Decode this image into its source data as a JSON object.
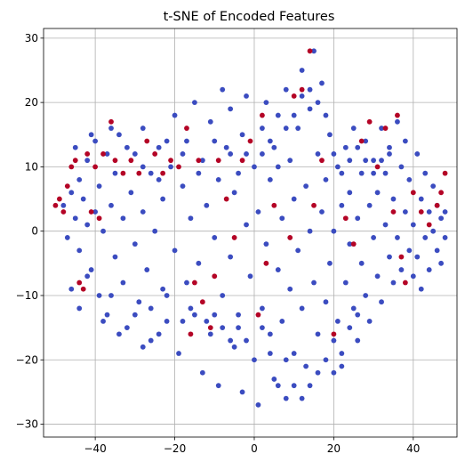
{
  "chart_data": {
    "type": "scatter",
    "title": "t-SNE of Encoded Features",
    "xlabel": "",
    "ylabel": "",
    "xlim": [
      -53,
      51
    ],
    "ylim": [
      -32,
      31.5
    ],
    "xticks": [
      -40,
      -20,
      0,
      20,
      40
    ],
    "yticks": [
      -30,
      -20,
      -10,
      0,
      10,
      20,
      30
    ],
    "grid": true,
    "legend": null,
    "colors": {
      "class_0": "#3b4cc0",
      "class_1": "#b40426",
      "grid": "#b0b0b0",
      "axes": "#000000"
    },
    "series": [
      {
        "class": 0,
        "color": "#3b4cc0",
        "points": [
          [
            -48,
            4
          ],
          [
            -47,
            -1
          ],
          [
            -46,
            6
          ],
          [
            -45,
            2
          ],
          [
            -44,
            8
          ],
          [
            -44,
            -3
          ],
          [
            -43,
            5
          ],
          [
            -42,
            1
          ],
          [
            -42,
            11
          ],
          [
            -41,
            -6
          ],
          [
            -40,
            3
          ],
          [
            -40,
            14
          ],
          [
            -39,
            -10
          ],
          [
            -39,
            7
          ],
          [
            -38,
            0
          ],
          [
            -37,
            12
          ],
          [
            -37,
            -13
          ],
          [
            -36,
            4
          ],
          [
            -35,
            -4
          ],
          [
            -35,
            9
          ],
          [
            -34,
            15
          ],
          [
            -33,
            -8
          ],
          [
            -33,
            2
          ],
          [
            -32,
            -15
          ],
          [
            -31,
            6
          ],
          [
            -30,
            12
          ],
          [
            -30,
            -2
          ],
          [
            -29,
            -11
          ],
          [
            -28,
            3
          ],
          [
            -28,
            16
          ],
          [
            -27,
            -6
          ],
          [
            -26,
            9
          ],
          [
            -26,
            -17
          ],
          [
            -25,
            0
          ],
          [
            -24,
            13
          ],
          [
            -23,
            -9
          ],
          [
            -23,
            5
          ],
          [
            -22,
            -14
          ],
          [
            -21,
            10
          ],
          [
            -20,
            -3
          ],
          [
            -20,
            18
          ],
          [
            -19,
            -19
          ],
          [
            -18,
            7
          ],
          [
            -17,
            -8
          ],
          [
            -17,
            14
          ],
          [
            -16,
            2
          ],
          [
            -15,
            -13
          ],
          [
            -15,
            20
          ],
          [
            -14,
            -5
          ],
          [
            -13,
            11
          ],
          [
            -13,
            -22
          ],
          [
            -12,
            4
          ],
          [
            -11,
            -16
          ],
          [
            -11,
            17
          ],
          [
            -10,
            -1
          ],
          [
            -9,
            8
          ],
          [
            -9,
            -24
          ],
          [
            -8,
            22
          ],
          [
            -8,
            -10
          ],
          [
            -7,
            13
          ],
          [
            -6,
            -4
          ],
          [
            -6,
            19
          ],
          [
            -5,
            -18
          ],
          [
            -5,
            6
          ],
          [
            -4,
            -13
          ],
          [
            -3,
            15
          ],
          [
            -3,
            -25
          ],
          [
            -2,
            1
          ],
          [
            -2,
            21
          ],
          [
            -1,
            -7
          ],
          [
            0,
            10
          ],
          [
            0,
            -20
          ],
          [
            1,
            -27
          ],
          [
            1,
            3
          ],
          [
            2,
            16
          ],
          [
            2,
            -12
          ],
          [
            3,
            -2
          ],
          [
            3,
            20
          ],
          [
            4,
            -16
          ],
          [
            4,
            8
          ],
          [
            5,
            -23
          ],
          [
            5,
            13
          ],
          [
            6,
            -6
          ],
          [
            6,
            18
          ],
          [
            7,
            -14
          ],
          [
            7,
            2
          ],
          [
            8,
            -26
          ],
          [
            8,
            22
          ],
          [
            9,
            -9
          ],
          [
            9,
            11
          ],
          [
            10,
            -19
          ],
          [
            10,
            5
          ],
          [
            11,
            16
          ],
          [
            11,
            -3
          ],
          [
            12,
            -12
          ],
          [
            12,
            25
          ],
          [
            13,
            7
          ],
          [
            13,
            -21
          ],
          [
            14,
            0
          ],
          [
            14,
            19
          ],
          [
            15,
            -8
          ],
          [
            15,
            28
          ],
          [
            16,
            12
          ],
          [
            16,
            -16
          ],
          [
            17,
            3
          ],
          [
            17,
            23
          ],
          [
            18,
            -11
          ],
          [
            18,
            8
          ],
          [
            19,
            -5
          ],
          [
            19,
            15
          ],
          [
            20,
            -22
          ],
          [
            20,
            0
          ],
          [
            21,
            10
          ],
          [
            21,
            -14
          ],
          [
            22,
            4
          ],
          [
            22,
            -19
          ],
          [
            23,
            13
          ],
          [
            23,
            -8
          ],
          [
            24,
            6
          ],
          [
            24,
            -2
          ],
          [
            25,
            16
          ],
          [
            25,
            -12
          ],
          [
            26,
            2
          ],
          [
            26,
            -17
          ],
          [
            27,
            9
          ],
          [
            27,
            -5
          ],
          [
            28,
            14
          ],
          [
            28,
            -10
          ],
          [
            29,
            4
          ],
          [
            29,
            -14
          ],
          [
            30,
            11
          ],
          [
            30,
            -1
          ],
          [
            31,
            -7
          ],
          [
            31,
            6
          ],
          [
            32,
            16
          ],
          [
            32,
            -11
          ],
          [
            33,
            1
          ],
          [
            33,
            9
          ],
          [
            34,
            -4
          ],
          [
            34,
            13
          ],
          [
            35,
            -8
          ],
          [
            35,
            5
          ],
          [
            36,
            17
          ],
          [
            36,
            -1
          ],
          [
            37,
            10
          ],
          [
            37,
            -6
          ],
          [
            38,
            3
          ],
          [
            38,
            14
          ],
          [
            39,
            -3
          ],
          [
            39,
            8
          ],
          [
            40,
            -7
          ],
          [
            40,
            1
          ],
          [
            41,
            12
          ],
          [
            41,
            -4
          ],
          [
            42,
            5
          ],
          [
            42,
            -9
          ],
          [
            43,
            9
          ],
          [
            43,
            -1
          ],
          [
            44,
            3
          ],
          [
            44,
            -6
          ],
          [
            45,
            7
          ],
          [
            45,
            0
          ],
          [
            46,
            -3
          ],
          [
            46,
            4
          ],
          [
            47,
            -5
          ],
          [
            47,
            2
          ],
          [
            48,
            -1
          ],
          [
            48,
            3
          ],
          [
            -46,
            -9
          ],
          [
            -44,
            -12
          ],
          [
            -42,
            -7
          ],
          [
            -38,
            -14
          ],
          [
            -36,
            -10
          ],
          [
            -34,
            -16
          ],
          [
            -30,
            -13
          ],
          [
            -28,
            -18
          ],
          [
            -26,
            -12
          ],
          [
            -24,
            -16
          ],
          [
            -22,
            -10
          ],
          [
            -18,
            -14
          ],
          [
            -16,
            -12
          ],
          [
            -12,
            -14
          ],
          [
            -10,
            -13
          ],
          [
            -8,
            -15
          ],
          [
            -6,
            -17
          ],
          [
            -4,
            -15
          ],
          [
            -2,
            -17
          ],
          [
            2,
            -15
          ],
          [
            4,
            -19
          ],
          [
            6,
            -24
          ],
          [
            8,
            -20
          ],
          [
            10,
            -24
          ],
          [
            12,
            -26
          ],
          [
            14,
            -24
          ],
          [
            16,
            -22
          ],
          [
            18,
            -20
          ],
          [
            20,
            -17
          ],
          [
            22,
            -21
          ],
          [
            24,
            -15
          ],
          [
            26,
            -13
          ],
          [
            -45,
            13
          ],
          [
            -41,
            15
          ],
          [
            -36,
            16
          ],
          [
            -32,
            13
          ],
          [
            -28,
            10
          ],
          [
            -24,
            8
          ],
          [
            -22,
            14
          ],
          [
            -18,
            12
          ],
          [
            -14,
            9
          ],
          [
            -10,
            14
          ],
          [
            -6,
            12
          ],
          [
            -4,
            9
          ],
          [
            -2,
            12
          ],
          [
            2,
            12
          ],
          [
            4,
            14
          ],
          [
            6,
            10
          ],
          [
            8,
            16
          ],
          [
            10,
            18
          ],
          [
            12,
            21
          ],
          [
            14,
            22
          ],
          [
            16,
            20
          ],
          [
            18,
            18
          ],
          [
            20,
            12
          ],
          [
            22,
            9
          ],
          [
            24,
            11
          ],
          [
            26,
            13
          ],
          [
            28,
            11
          ],
          [
            30,
            9
          ],
          [
            32,
            11
          ],
          [
            34,
            12
          ]
        ]
      },
      {
        "class": 1,
        "color": "#b40426",
        "points": [
          [
            -50,
            4
          ],
          [
            -49,
            5
          ],
          [
            -48,
            3
          ],
          [
            -47,
            7
          ],
          [
            -46,
            10
          ],
          [
            -45,
            11
          ],
          [
            -44,
            -8
          ],
          [
            -43,
            -9
          ],
          [
            -42,
            12
          ],
          [
            -41,
            3
          ],
          [
            -40,
            10
          ],
          [
            -39,
            2
          ],
          [
            -38,
            12
          ],
          [
            -36,
            17
          ],
          [
            -35,
            11
          ],
          [
            -33,
            9
          ],
          [
            -31,
            11
          ],
          [
            -29,
            9
          ],
          [
            -27,
            14
          ],
          [
            -25,
            12
          ],
          [
            -23,
            9
          ],
          [
            -21,
            11
          ],
          [
            -19,
            10
          ],
          [
            -17,
            16
          ],
          [
            -16,
            -16
          ],
          [
            -15,
            -8
          ],
          [
            -14,
            11
          ],
          [
            -13,
            -11
          ],
          [
            -11,
            -15
          ],
          [
            -10,
            -7
          ],
          [
            -9,
            11
          ],
          [
            -7,
            5
          ],
          [
            -5,
            -1
          ],
          [
            -3,
            11
          ],
          [
            -1,
            14
          ],
          [
            1,
            -13
          ],
          [
            2,
            18
          ],
          [
            3,
            -5
          ],
          [
            5,
            4
          ],
          [
            9,
            -1
          ],
          [
            10,
            21
          ],
          [
            12,
            22
          ],
          [
            14,
            28
          ],
          [
            15,
            4
          ],
          [
            17,
            11
          ],
          [
            20,
            -16
          ],
          [
            23,
            2
          ],
          [
            25,
            -2
          ],
          [
            27,
            14
          ],
          [
            29,
            17
          ],
          [
            31,
            10
          ],
          [
            33,
            16
          ],
          [
            35,
            3
          ],
          [
            36,
            18
          ],
          [
            37,
            -4
          ],
          [
            38,
            -8
          ],
          [
            40,
            6
          ],
          [
            42,
            3
          ],
          [
            44,
            1
          ],
          [
            46,
            4
          ],
          [
            47,
            6
          ],
          [
            48,
            9
          ]
        ]
      }
    ]
  }
}
